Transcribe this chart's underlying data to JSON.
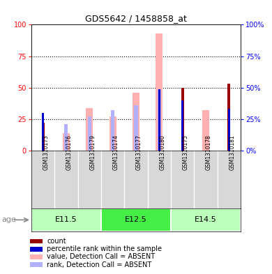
{
  "title": "GDS5642 / 1458858_at",
  "samples": [
    "GSM1310173",
    "GSM1310176",
    "GSM1310179",
    "GSM1310174",
    "GSM1310177",
    "GSM1310180",
    "GSM1310175",
    "GSM1310178",
    "GSM1310181"
  ],
  "age_groups": [
    {
      "label": "E11.5",
      "start": 0,
      "end": 3,
      "color": "#bbffbb"
    },
    {
      "label": "E12.5",
      "start": 3,
      "end": 6,
      "color": "#44ee44"
    },
    {
      "label": "E14.5",
      "start": 6,
      "end": 9,
      "color": "#bbffbb"
    }
  ],
  "count_values": [
    22,
    0,
    0,
    0,
    0,
    0,
    50,
    0,
    53
  ],
  "percentile_rank_values": [
    30,
    0,
    0,
    0,
    0,
    49,
    40,
    0,
    33
  ],
  "absent_value_values": [
    0,
    14,
    34,
    27,
    46,
    93,
    0,
    32,
    0
  ],
  "absent_rank_values": [
    0,
    21,
    27,
    32,
    36,
    49,
    0,
    0,
    0
  ],
  "yticks": [
    0,
    25,
    50,
    75,
    100
  ],
  "count_color": "#990000",
  "percentile_color": "#0000cc",
  "absent_value_color": "#ffb0b0",
  "absent_rank_color": "#b0b0ff",
  "label_bg": "#d8d8d8",
  "legend_items": [
    {
      "label": "count",
      "color": "#990000"
    },
    {
      "label": "percentile rank within the sample",
      "color": "#0000cc"
    },
    {
      "label": "value, Detection Call = ABSENT",
      "color": "#ffb0b0"
    },
    {
      "label": "rank, Detection Call = ABSENT",
      "color": "#b0b0ff"
    }
  ]
}
